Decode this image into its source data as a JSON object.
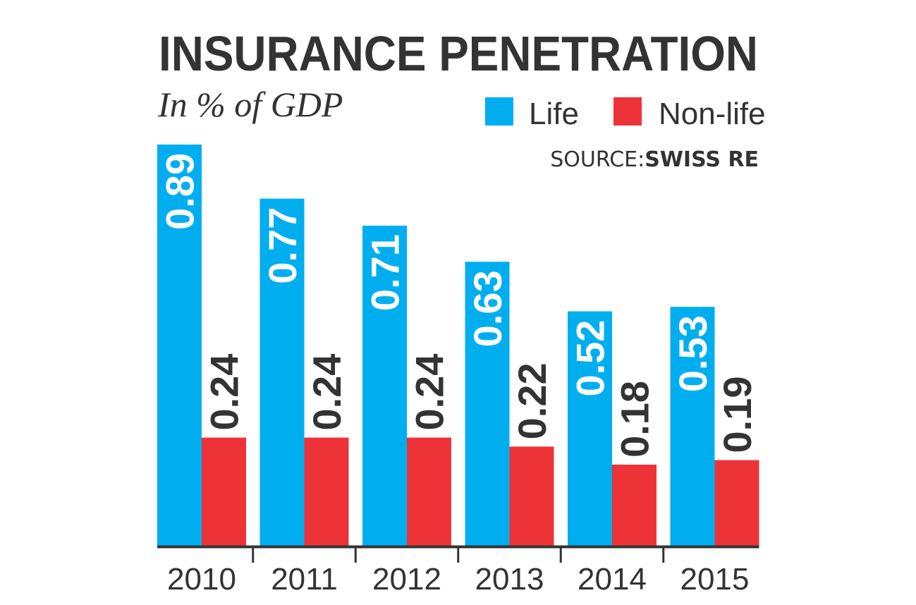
{
  "chart_data": {
    "type": "bar",
    "title": "INSURANCE PENETRATION",
    "subtitle": "In % of GDP",
    "source_prefix": "SOURCE:",
    "source_name": "SWISS RE",
    "categories": [
      "2010",
      "2011",
      "2012",
      "2013",
      "2014",
      "2015"
    ],
    "series": [
      {
        "name": "Life",
        "color": "#00aeef",
        "values": [
          0.89,
          0.77,
          0.71,
          0.63,
          0.52,
          0.53
        ]
      },
      {
        "name": "Non-life",
        "color": "#ee3338",
        "values": [
          0.24,
          0.24,
          0.24,
          0.22,
          0.18,
          0.19
        ]
      }
    ],
    "value_labels": [
      [
        "0.89",
        "0.77",
        "0.71",
        "0.63",
        "0.52",
        "0.53"
      ],
      [
        "0.24",
        "0.24",
        "0.24",
        "0.22",
        "0.18",
        "0.19"
      ]
    ],
    "ylim": [
      0,
      0.89
    ],
    "legend_position": "top-right",
    "grid": false,
    "axis_color": "#333333",
    "life_label_color": "#ffffff",
    "nonlife_label_color": "#333333"
  }
}
